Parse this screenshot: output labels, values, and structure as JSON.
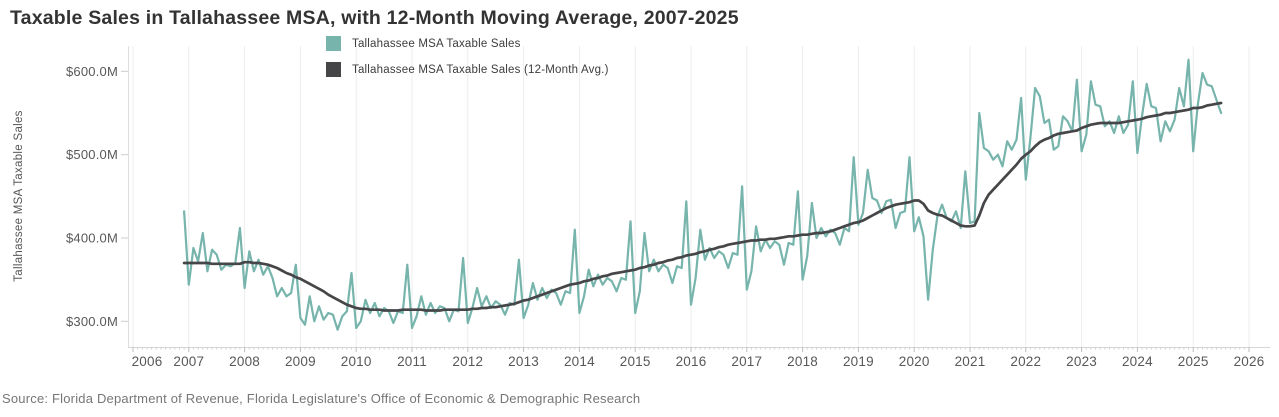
{
  "page": {
    "source": "Source: Florida Department of Revenue, Florida Legislature's Office of Economic & Demographic Research"
  },
  "chart_data": {
    "type": "line",
    "title": "Taxable Sales in Tallahassee MSA, with 12-Month Moving Average, 2007-2025",
    "xlabel": "",
    "ylabel": "Tallahassee MSA Taxable Sales",
    "units": "USD millions",
    "x_start": "2006-12",
    "x_end": "2025-07",
    "freq": "monthly",
    "xlim": [
      2006,
      2026.4
    ],
    "ylim": [
      270,
      632
    ],
    "grid": "vertical-year-gridlines-only",
    "legend_position": "top-left",
    "x_ticks": [
      "2006",
      "2007",
      "2008",
      "2009",
      "2010",
      "2011",
      "2012",
      "2013",
      "2014",
      "2015",
      "2016",
      "2017",
      "2018",
      "2019",
      "2020",
      "2021",
      "2022",
      "2023",
      "2024",
      "2025",
      "2026"
    ],
    "y_ticks": [
      {
        "value": 600,
        "label": "$600.0M"
      },
      {
        "value": 500,
        "label": "$500.0M"
      },
      {
        "value": 400,
        "label": "$400.0M"
      },
      {
        "value": 300,
        "label": "$300.0M"
      }
    ],
    "series": [
      {
        "name": "Tallahassee MSA Taxable Sales",
        "color": "#76b4ac",
        "values": [
          432,
          344,
          388,
          372,
          406,
          360,
          386,
          380,
          362,
          368,
          366,
          370,
          412,
          340,
          384,
          360,
          374,
          356,
          366,
          352,
          330,
          340,
          330,
          334,
          368,
          304,
          296,
          330,
          300,
          318,
          302,
          310,
          308,
          290,
          306,
          312,
          358,
          292,
          300,
          326,
          310,
          322,
          306,
          316,
          312,
          298,
          312,
          310,
          368,
          292,
          306,
          330,
          308,
          322,
          310,
          318,
          316,
          300,
          314,
          312,
          376,
          298,
          316,
          340,
          318,
          330,
          316,
          324,
          320,
          308,
          322,
          320,
          374,
          304,
          320,
          346,
          326,
          340,
          328,
          338,
          334,
          320,
          336,
          334,
          410,
          310,
          330,
          362,
          342,
          356,
          344,
          352,
          348,
          336,
          352,
          350,
          420,
          310,
          336,
          406,
          360,
          374,
          360,
          368,
          364,
          346,
          366,
          364,
          444,
          320,
          352,
          410,
          374,
          388,
          376,
          384,
          380,
          364,
          382,
          380,
          462,
          338,
          360,
          414,
          384,
          398,
          388,
          396,
          392,
          368,
          394,
          392,
          456,
          350,
          378,
          442,
          400,
          412,
          402,
          410,
          406,
          392,
          412,
          408,
          497,
          416,
          430,
          482,
          448,
          445,
          430,
          444,
          446,
          412,
          430,
          432,
          497,
          408,
          425,
          402,
          326,
          386,
          426,
          440,
          424,
          420,
          432,
          412,
          480,
          418,
          420,
          550,
          508,
          504,
          494,
          500,
          486,
          516,
          506,
          518,
          568,
          470,
          520,
          580,
          570,
          538,
          542,
          506,
          510,
          546,
          540,
          528,
          590,
          504,
          524,
          588,
          560,
          558,
          534,
          540,
          526,
          546,
          526,
          536,
          588,
          502,
          546,
          585,
          558,
          556,
          516,
          540,
          528,
          542,
          580,
          558,
          614,
          504,
          560,
          598,
          584,
          582,
          566,
          550
        ]
      },
      {
        "name": "Tallahassee MSA Taxable Sales (12-Month Avg.)",
        "color": "#464649",
        "values": [
          370,
          370,
          370,
          370,
          370,
          370,
          369,
          369,
          369,
          369,
          369,
          369,
          369,
          371,
          371,
          370,
          370,
          369,
          368,
          366,
          364,
          361,
          358,
          356,
          353,
          351,
          348,
          345,
          342,
          339,
          336,
          332,
          329,
          326,
          323,
          320,
          318,
          316,
          315,
          315,
          314,
          314,
          314,
          313,
          313,
          313,
          313,
          314,
          314,
          314,
          314,
          314,
          313,
          313,
          313,
          313,
          314,
          314,
          314,
          314,
          314,
          314,
          315,
          315,
          316,
          316,
          317,
          317,
          318,
          319,
          320,
          321,
          323,
          325,
          326,
          328,
          330,
          332,
          334,
          336,
          338,
          340,
          342,
          344,
          345,
          346,
          348,
          349,
          351,
          352,
          354,
          355,
          357,
          358,
          359,
          360,
          361,
          362,
          364,
          365,
          367,
          368,
          370,
          371,
          373,
          374,
          376,
          377,
          379,
          380,
          381,
          383,
          384,
          386,
          387,
          389,
          390,
          392,
          393,
          394,
          395,
          396,
          397,
          397,
          398,
          398,
          399,
          399,
          400,
          401,
          402,
          402,
          403,
          404,
          404,
          405,
          406,
          406,
          407,
          408,
          410,
          412,
          414,
          416,
          418,
          419,
          421,
          424,
          427,
          430,
          433,
          436,
          438,
          440,
          441,
          442,
          443,
          445,
          445,
          441,
          433,
          430,
          428,
          427,
          424,
          421,
          418,
          415,
          414,
          414,
          415,
          427,
          442,
          452,
          458,
          464,
          470,
          476,
          482,
          488,
          495,
          500,
          504,
          510,
          515,
          518,
          520,
          523,
          525,
          526,
          527,
          528,
          529,
          532,
          534,
          536,
          537,
          538,
          538,
          538,
          538,
          538,
          539,
          540,
          541,
          542,
          543,
          545,
          546,
          547,
          548,
          550,
          550,
          551,
          552,
          553,
          554,
          556,
          556,
          557,
          559,
          560,
          561,
          562
        ]
      }
    ]
  }
}
